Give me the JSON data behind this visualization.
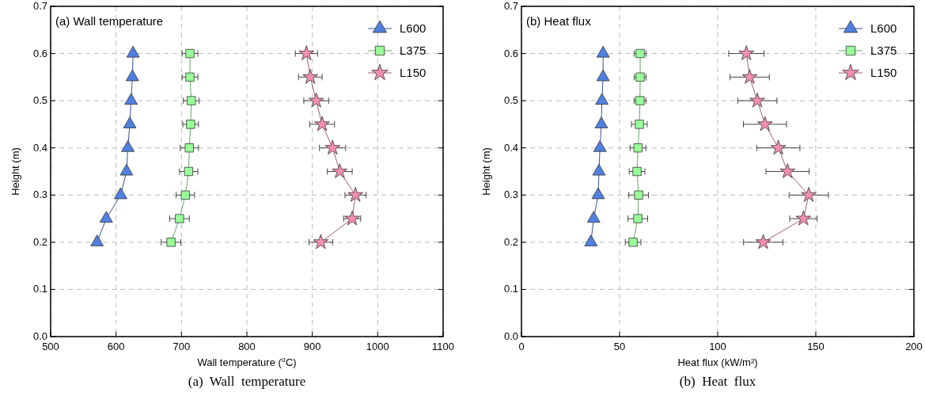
{
  "chart_data": [
    {
      "type": "line",
      "title": "(a) Wall temperature",
      "xlabel": "Wall temperature ($^{o}$C)",
      "ylabel": "Height (m)",
      "annotations": [
        "(a)  Wall  temperature"
      ],
      "xlim": [
        500,
        1100
      ],
      "xticks": [
        500,
        600,
        700,
        800,
        900,
        1000,
        1100
      ],
      "ylim": [
        0,
        0.7
      ],
      "yticks": [
        {
          "value": 0,
          "label": "0.0"
        },
        0.1,
        0.2,
        0.3,
        0.4,
        0.5,
        0.6,
        0.7
      ],
      "grid": true,
      "legend": "top right",
      "line_style": "solid",
      "series": [
        {
          "name": "L600",
          "color": "#5080e0",
          "marker": "triangle",
          "x": [
            626,
            625,
            623,
            621,
            618,
            616,
            607,
            585,
            571
          ],
          "values": [
            0.6,
            0.55,
            0.5,
            0.45,
            0.4,
            0.35,
            0.3,
            0.25,
            0.2
          ]
        },
        {
          "name": "L375",
          "color": "#99ff99",
          "marker": "square",
          "x": [
            713,
            713,
            715,
            714,
            712,
            711,
            706,
            697,
            684
          ],
          "values": [
            0.6,
            0.55,
            0.5,
            0.45,
            0.4,
            0.35,
            0.3,
            0.25,
            0.2
          ],
          "xerrors": [
            12,
            12,
            12,
            12,
            14,
            14,
            14,
            15,
            15
          ]
        },
        {
          "name": "L150",
          "color": "#f48fb1",
          "marker": "star",
          "x": [
            891,
            897,
            906,
            915,
            931,
            942,
            966,
            961,
            913
          ],
          "values": [
            0.6,
            0.55,
            0.5,
            0.45,
            0.4,
            0.35,
            0.3,
            0.25,
            0.2
          ],
          "xerrors": [
            17,
            18,
            19,
            19,
            20,
            19,
            16,
            13,
            18
          ]
        }
      ]
    },
    {
      "type": "line",
      "title": "(b) Heat flux",
      "xlabel": "Heat flux (kW/m²)",
      "ylabel": "Height (m)",
      "annotations": [
        "(b)  Heat  flux"
      ],
      "xlim": [
        0,
        200
      ],
      "xticks": [
        0,
        50,
        100,
        150,
        200
      ],
      "ylim": [
        0,
        0.7
      ],
      "yticks": [
        {
          "value": 0,
          "label": "0.0"
        },
        0.1,
        0.2,
        0.3,
        0.4,
        0.5,
        0.6,
        0.7
      ],
      "grid": true,
      "legend": "top right",
      "line_style": "solid",
      "series": [
        {
          "name": "L600",
          "color": "#5080e0",
          "marker": "triangle",
          "x": [
            41.6,
            41.6,
            41,
            40.7,
            40,
            39.5,
            39.1,
            36.8,
            35.4
          ],
          "values": [
            0.6,
            0.55,
            0.5,
            0.45,
            0.4,
            0.35,
            0.3,
            0.25,
            0.2
          ]
        },
        {
          "name": "L375",
          "color": "#99ff99",
          "marker": "square",
          "x": [
            60.5,
            60.5,
            60.4,
            60.1,
            59.4,
            58.9,
            59.7,
            59.3,
            56.9
          ],
          "values": [
            0.6,
            0.55,
            0.5,
            0.45,
            0.4,
            0.35,
            0.3,
            0.25,
            0.2
          ],
          "xerrors": [
            3,
            3,
            3,
            4,
            4,
            4,
            5,
            5,
            4
          ]
        },
        {
          "name": "L150",
          "color": "#f48fb1",
          "marker": "star",
          "x": [
            114.6,
            116.3,
            120.2,
            124.1,
            130.9,
            135.6,
            146.4,
            143.7,
            123.2
          ],
          "values": [
            0.6,
            0.55,
            0.5,
            0.45,
            0.4,
            0.35,
            0.3,
            0.25,
            0.2
          ],
          "xerrors": [
            9,
            10,
            10,
            11,
            11,
            11,
            10,
            7,
            10
          ]
        }
      ]
    }
  ]
}
